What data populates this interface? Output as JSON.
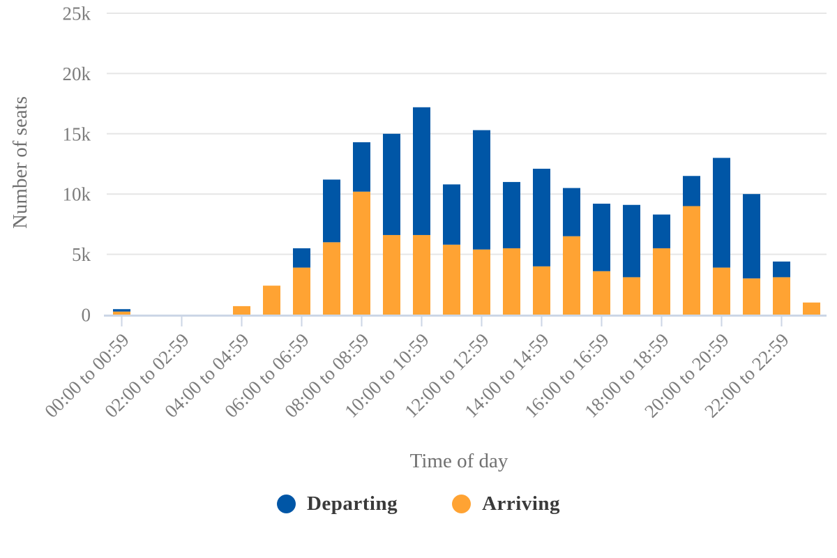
{
  "chart_data": {
    "type": "bar",
    "stacked": true,
    "title": "",
    "xlabel": "Time of day",
    "ylabel": "Number of seats",
    "ylim": [
      0,
      25000
    ],
    "yticks": [
      {
        "value": 0,
        "label": "0"
      },
      {
        "value": 5000,
        "label": "5k"
      },
      {
        "value": 10000,
        "label": "10k"
      },
      {
        "value": 15000,
        "label": "15k"
      },
      {
        "value": 20000,
        "label": "20k"
      },
      {
        "value": 25000,
        "label": "25k"
      }
    ],
    "bar_slots": 24,
    "xticks": [
      {
        "slot": 0,
        "label": "00:00 to 00:59"
      },
      {
        "slot": 2,
        "label": "02:00 to 02:59"
      },
      {
        "slot": 4,
        "label": "04:00 to 04:59"
      },
      {
        "slot": 6,
        "label": "06:00 to 06:59"
      },
      {
        "slot": 8,
        "label": "08:00 to 08:59"
      },
      {
        "slot": 10,
        "label": "10:00 to 10:59"
      },
      {
        "slot": 12,
        "label": "12:00 to 12:59"
      },
      {
        "slot": 14,
        "label": "14:00 to 14:59"
      },
      {
        "slot": 16,
        "label": "16:00 to 16:59"
      },
      {
        "slot": 18,
        "label": "18:00 to 18:59"
      },
      {
        "slot": 20,
        "label": "20:00 to 20:59"
      },
      {
        "slot": 22,
        "label": "22:00 to 22:59"
      }
    ],
    "stack_order_bottom_to_top": [
      "Arriving",
      "Departing"
    ],
    "series": [
      {
        "name": "Departing",
        "color": "#0056A6",
        "values": [
          200,
          0,
          0,
          0,
          0,
          0,
          1600,
          5200,
          4100,
          8400,
          10600,
          5000,
          9900,
          5500,
          8100,
          4000,
          5600,
          6000,
          2800,
          2500,
          9100,
          7000,
          1300,
          0
        ]
      },
      {
        "name": "Arriving",
        "color": "#FFA333",
        "values": [
          250,
          0,
          0,
          0,
          700,
          2400,
          3900,
          6000,
          10200,
          6600,
          6600,
          5800,
          5400,
          5500,
          4000,
          6500,
          3600,
          3100,
          5500,
          9000,
          3900,
          3000,
          3100,
          1000
        ]
      }
    ],
    "legend": {
      "position": "bottom",
      "entries": [
        {
          "label": "Departing",
          "color": "#0056A6"
        },
        {
          "label": "Arriving",
          "color": "#FFA333"
        }
      ]
    },
    "grid": "horizontal",
    "colors": {
      "gridline": "#e6e6e6",
      "axis_line": "#ccd6e6",
      "tick_label": "#7d7d7d",
      "axis_title": "#707070",
      "legend_text": "#3a3a3a",
      "background": "#ffffff"
    }
  }
}
